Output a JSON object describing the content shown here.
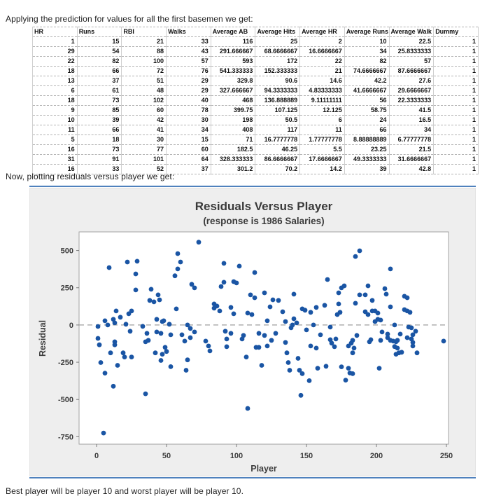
{
  "page": {
    "intro_text": "Applying the prediction for values for all the first basemen we get:",
    "mid_text": "Now, plotting residuals versus player we get:",
    "footer_text": "Best player will be player 10 and worst player will be player 10."
  },
  "table": {
    "columns": [
      "HR",
      "Runs",
      "RBI",
      "Walks",
      "Average AB",
      "Average Hits",
      "Average HR",
      "Average Runs",
      "Average Walk",
      "Dummy"
    ],
    "rows": [
      [
        "1",
        "15",
        "21",
        "33",
        "116",
        "25",
        "2",
        "10",
        "22.5",
        "1"
      ],
      [
        "29",
        "54",
        "88",
        "43",
        "291.666667",
        "68.6666667",
        "16.6666667",
        "34",
        "25.8333333",
        "1"
      ],
      [
        "22",
        "82",
        "100",
        "57",
        "593",
        "172",
        "22",
        "82",
        "57",
        "1"
      ],
      [
        "18",
        "66",
        "72",
        "76",
        "541.333333",
        "152.333333",
        "21",
        "74.6666667",
        "87.6666667",
        "1"
      ],
      [
        "13",
        "37",
        "51",
        "29",
        "329.8",
        "90.6",
        "14.6",
        "42.2",
        "27.6",
        "1"
      ],
      [
        "6",
        "61",
        "48",
        "29",
        "327.666667",
        "94.3333333",
        "4.83333333",
        "41.6666667",
        "29.6666667",
        "1"
      ],
      [
        "18",
        "73",
        "102",
        "40",
        "468",
        "136.888889",
        "9.11111111",
        "56",
        "22.3333333",
        "1"
      ],
      [
        "9",
        "85",
        "60",
        "78",
        "399.75",
        "107.125",
        "12.125",
        "58.75",
        "41.5",
        "1"
      ],
      [
        "10",
        "39",
        "42",
        "30",
        "198",
        "50.5",
        "6",
        "24",
        "16.5",
        "1"
      ],
      [
        "11",
        "66",
        "41",
        "34",
        "408",
        "117",
        "11",
        "66",
        "34",
        "1"
      ],
      [
        "5",
        "18",
        "30",
        "15",
        "71",
        "16.7777778",
        "1.77777778",
        "8.88888889",
        "6.77777778",
        "1"
      ],
      [
        "16",
        "73",
        "77",
        "60",
        "182.5",
        "46.25",
        "5.5",
        "23.25",
        "21.5",
        "1"
      ],
      [
        "31",
        "91",
        "101",
        "64",
        "328.333333",
        "86.6666667",
        "17.6666667",
        "49.3333333",
        "31.6666667",
        "1"
      ],
      [
        "16",
        "33",
        "52",
        "37",
        "301.2",
        "70.2",
        "14.2",
        "39",
        "42.8",
        "1"
      ]
    ]
  },
  "chart_data": {
    "type": "scatter",
    "title": "Residuals Versus Player",
    "subtitle": "(response is 1986 Salaries)",
    "xlabel": "Player",
    "ylabel": "Residual",
    "xlim": [
      -12.5,
      251.5
    ],
    "ylim": [
      -800,
      625
    ],
    "xticks": [
      0,
      50,
      100,
      150,
      200,
      250
    ],
    "yticks": [
      500,
      250,
      0,
      -250,
      -500,
      -750
    ],
    "grid": false,
    "legend": "none",
    "zero_line_y": 0,
    "colors": {
      "point": "#1A55A4",
      "rule_blue": "#4f81bd",
      "chart_bg": "#eeeeee",
      "plot_bg": "#ffffff",
      "plot_border": "#a3a3a3",
      "dashed_line": "#9e9e9e",
      "tick": "#7a7a7a",
      "text": "#3a3a3a"
    },
    "points": [
      [
        1,
        -10
      ],
      [
        1,
        -90
      ],
      [
        2,
        -133
      ],
      [
        3,
        -252
      ],
      [
        5,
        -725
      ],
      [
        6,
        -323
      ],
      [
        6,
        28
      ],
      [
        8,
        0
      ],
      [
        9,
        385
      ],
      [
        10,
        -187
      ],
      [
        12,
        38
      ],
      [
        12,
        -411
      ],
      [
        13,
        14
      ],
      [
        13,
        -113
      ],
      [
        13,
        -133
      ],
      [
        14,
        94
      ],
      [
        15,
        -271
      ],
      [
        17,
        52
      ],
      [
        19,
        -187
      ],
      [
        20,
        -215
      ],
      [
        21,
        5
      ],
      [
        22,
        423
      ],
      [
        23,
        75
      ],
      [
        24,
        -42
      ],
      [
        25,
        94
      ],
      [
        25,
        -215
      ],
      [
        28,
        235
      ],
      [
        28,
        343
      ],
      [
        29,
        428
      ],
      [
        33,
        -9
      ],
      [
        35,
        -113
      ],
      [
        35,
        -462
      ],
      [
        36,
        -56
      ],
      [
        37,
        -103
      ],
      [
        38,
        165
      ],
      [
        39,
        240
      ],
      [
        41,
        155
      ],
      [
        42,
        -187
      ],
      [
        43,
        38
      ],
      [
        43,
        -47
      ],
      [
        44,
        202
      ],
      [
        45,
        169
      ],
      [
        46,
        -56
      ],
      [
        46,
        -238
      ],
      [
        47,
        23
      ],
      [
        47,
        -196
      ],
      [
        48,
        28
      ],
      [
        49,
        -150
      ],
      [
        50,
        -178
      ],
      [
        52,
        5
      ],
      [
        53,
        -66
      ],
      [
        53,
        -280
      ],
      [
        56,
        330
      ],
      [
        57,
        108
      ],
      [
        58,
        376
      ],
      [
        58,
        479
      ],
      [
        60,
        423
      ],
      [
        61,
        -66
      ],
      [
        63,
        -108
      ],
      [
        64,
        -304
      ],
      [
        65,
        0
      ],
      [
        65,
        -234
      ],
      [
        67,
        -23
      ],
      [
        67,
        -85
      ],
      [
        68,
        273
      ],
      [
        70,
        249
      ],
      [
        70,
        -47
      ],
      [
        73,
        556
      ],
      [
        78,
        -108
      ],
      [
        80,
        -141
      ],
      [
        81,
        -174
      ],
      [
        84,
        141
      ],
      [
        84,
        113
      ],
      [
        86,
        127
      ],
      [
        88,
        94
      ],
      [
        89,
        258
      ],
      [
        91,
        414
      ],
      [
        91,
        287
      ],
      [
        92,
        -42
      ],
      [
        93,
        -94
      ],
      [
        93,
        -146
      ],
      [
        96,
        118
      ],
      [
        96,
        -56
      ],
      [
        98,
        291
      ],
      [
        98,
        75
      ],
      [
        100,
        282
      ],
      [
        102,
        395
      ],
      [
        104,
        -94
      ],
      [
        105,
        -70
      ],
      [
        107,
        -215
      ],
      [
        108,
        80
      ],
      [
        108,
        -560
      ],
      [
        110,
        202
      ],
      [
        111,
        70
      ],
      [
        113,
        352
      ],
      [
        113,
        183
      ],
      [
        114,
        -150
      ],
      [
        116,
        -150
      ],
      [
        116,
        -56
      ],
      [
        118,
        -271
      ],
      [
        120,
        216
      ],
      [
        120,
        -70
      ],
      [
        122,
        28
      ],
      [
        122,
        -141
      ],
      [
        124,
        122
      ],
      [
        125,
        -103
      ],
      [
        126,
        169
      ],
      [
        128,
        -56
      ],
      [
        130,
        165
      ],
      [
        133,
        89
      ],
      [
        135,
        23
      ],
      [
        135,
        -117
      ],
      [
        136,
        -187
      ],
      [
        137,
        -252
      ],
      [
        138,
        -304
      ],
      [
        139,
        -19
      ],
      [
        140,
        0
      ],
      [
        141,
        207
      ],
      [
        141,
        42
      ],
      [
        143,
        14
      ],
      [
        144,
        -224
      ],
      [
        145,
        -304
      ],
      [
        146,
        -472
      ],
      [
        147,
        108
      ],
      [
        147,
        -327
      ],
      [
        149,
        99
      ],
      [
        150,
        -33
      ],
      [
        152,
        -374
      ],
      [
        153,
        85
      ],
      [
        153,
        -141
      ],
      [
        155,
        0
      ],
      [
        157,
        118
      ],
      [
        157,
        -155
      ],
      [
        158,
        -290
      ],
      [
        160,
        -66
      ],
      [
        163,
        132
      ],
      [
        164,
        -277
      ],
      [
        165,
        305
      ],
      [
        167,
        -14
      ],
      [
        167,
        -99
      ],
      [
        168,
        -122
      ],
      [
        170,
        -146
      ],
      [
        171,
        -94
      ],
      [
        172,
        70
      ],
      [
        173,
        141
      ],
      [
        173,
        216
      ],
      [
        174,
        85
      ],
      [
        175,
        249
      ],
      [
        175,
        -281
      ],
      [
        177,
        263
      ],
      [
        178,
        -370
      ],
      [
        180,
        -141
      ],
      [
        180,
        -290
      ],
      [
        181,
        -322
      ],
      [
        182,
        -122
      ],
      [
        183,
        -327
      ],
      [
        183,
        -103
      ],
      [
        183,
        -187
      ],
      [
        184,
        -155
      ],
      [
        185,
        146
      ],
      [
        185,
        460
      ],
      [
        186,
        -70
      ],
      [
        188,
        498
      ],
      [
        188,
        202
      ],
      [
        192,
        202
      ],
      [
        192,
        89
      ],
      [
        194,
        263
      ],
      [
        194,
        70
      ],
      [
        195,
        -113
      ],
      [
        196,
        -99
      ],
      [
        197,
        165
      ],
      [
        197,
        94
      ],
      [
        199,
        94
      ],
      [
        199,
        23
      ],
      [
        201,
        80
      ],
      [
        201,
        38
      ],
      [
        202,
        -290
      ],
      [
        203,
        33
      ],
      [
        203,
        -103
      ],
      [
        204,
        -47
      ],
      [
        206,
        244
      ],
      [
        207,
        207
      ],
      [
        208,
        -61
      ],
      [
        208,
        -85
      ],
      [
        210,
        376
      ],
      [
        210,
        122
      ],
      [
        210,
        -103
      ],
      [
        212,
        -108
      ],
      [
        213,
        0
      ],
      [
        213,
        -145
      ],
      [
        214,
        -113
      ],
      [
        214,
        -196
      ],
      [
        215,
        -103
      ],
      [
        215,
        -155
      ],
      [
        216,
        -187
      ],
      [
        217,
        -61
      ],
      [
        218,
        -183
      ],
      [
        220,
        193
      ],
      [
        220,
        103
      ],
      [
        222,
        183
      ],
      [
        222,
        94
      ],
      [
        222,
        -85
      ],
      [
        223,
        -14
      ],
      [
        224,
        85
      ],
      [
        225,
        -19
      ],
      [
        225,
        -94
      ],
      [
        226,
        -66
      ],
      [
        226,
        -117
      ],
      [
        226,
        -141
      ],
      [
        228,
        -42
      ],
      [
        229,
        -187
      ],
      [
        248,
        -108
      ]
    ]
  }
}
